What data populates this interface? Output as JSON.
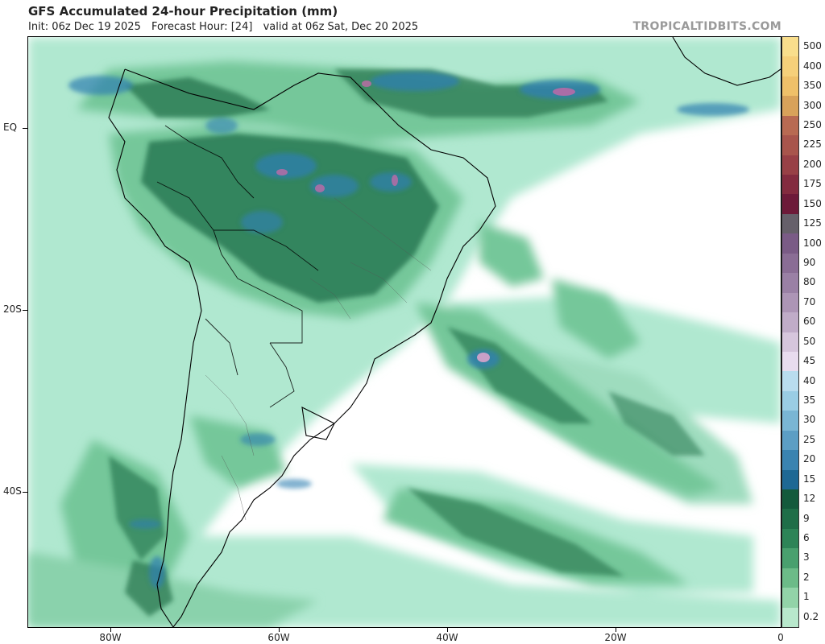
{
  "header": {
    "title": "GFS Accumulated 24-hour Precipitation (mm)",
    "init": "Init: 06z Dec 19 2025",
    "forecast_hour": "Forecast Hour: [24]",
    "valid": "valid at 06z Sat, Dec 20 2025",
    "brand": "TROPICALTIDBITS.COM"
  },
  "axes": {
    "lat_labels": [
      "EQ",
      "20S",
      "40S"
    ],
    "lon_labels": [
      "80W",
      "60W",
      "40W",
      "20W",
      "0"
    ]
  },
  "colorbar": {
    "levels": [
      {
        "label": "500",
        "color": "#f9de8c"
      },
      {
        "label": "400",
        "color": "#f6d07a"
      },
      {
        "label": "350",
        "color": "#efc069"
      },
      {
        "label": "300",
        "color": "#d8a25a"
      },
      {
        "label": "250",
        "color": "#b86a52"
      },
      {
        "label": "225",
        "color": "#a8554c"
      },
      {
        "label": "200",
        "color": "#984046"
      },
      {
        "label": "175",
        "color": "#832b3f"
      },
      {
        "label": "150",
        "color": "#6d1a39"
      },
      {
        "label": "125",
        "color": "#66606a"
      },
      {
        "label": "100",
        "color": "#7a5b86"
      },
      {
        "label": "90",
        "color": "#8a6d95"
      },
      {
        "label": "80",
        "color": "#9a80a5"
      },
      {
        "label": "70",
        "color": "#ad95b6"
      },
      {
        "label": "60",
        "color": "#c0acc8"
      },
      {
        "label": "50",
        "color": "#d6c6dc"
      },
      {
        "label": "45",
        "color": "#e8dcee"
      },
      {
        "label": "40",
        "color": "#b9dcee"
      },
      {
        "label": "35",
        "color": "#9acde4"
      },
      {
        "label": "30",
        "color": "#7ab6d4"
      },
      {
        "label": "25",
        "color": "#5c9ec4"
      },
      {
        "label": "20",
        "color": "#3a83b0"
      },
      {
        "label": "15",
        "color": "#1e6894"
      },
      {
        "label": "12",
        "color": "#145a3c"
      },
      {
        "label": "9",
        "color": "#1f6e48"
      },
      {
        "label": "6",
        "color": "#2d8457"
      },
      {
        "label": "3",
        "color": "#49a06e"
      },
      {
        "label": "2",
        "color": "#6cbb88"
      },
      {
        "label": "1",
        "color": "#92d3a8"
      },
      {
        "label": "0.2",
        "color": "#b8e8cc"
      }
    ]
  },
  "legend_colors": {
    "light_green": "#b0e8d0",
    "mid_green": "#75c79a",
    "dark_green": "#2e7d56",
    "blue": "#2f7fb0",
    "magenta": "#c06aa8",
    "border": "#000000"
  }
}
